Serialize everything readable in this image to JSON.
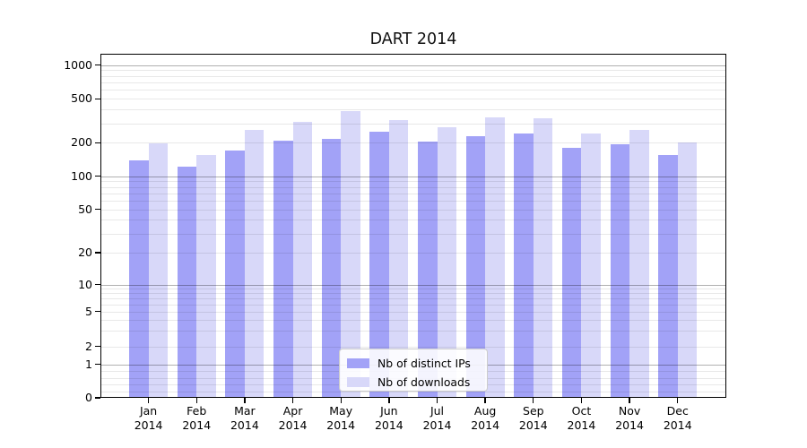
{
  "chart_data": {
    "type": "bar",
    "title": "DART 2014",
    "x": {
      "months": [
        "Jan",
        "Feb",
        "Mar",
        "Apr",
        "May",
        "Jun",
        "Jul",
        "Aug",
        "Sep",
        "Oct",
        "Nov",
        "Dec"
      ],
      "year": "2014"
    },
    "categories": [
      "Jan 2014",
      "Feb 2014",
      "Mar 2014",
      "Apr 2014",
      "May 2014",
      "Jun 2014",
      "Jul 2014",
      "Aug 2014",
      "Sep 2014",
      "Oct 2014",
      "Nov 2014",
      "Dec 2014"
    ],
    "series": [
      {
        "name": "Nb of distinct IPs",
        "color": "#a2a2f7",
        "values": [
          139,
          122,
          171,
          210,
          215,
          253,
          206,
          231,
          241,
          179,
          194,
          156
        ]
      },
      {
        "name": "Nb of downloads",
        "color": "#d8d8f9",
        "values": [
          197,
          154,
          263,
          311,
          389,
          323,
          275,
          340,
          333,
          241,
          261,
          200
        ]
      }
    ],
    "y_axis": {
      "scale": "symlog",
      "ticks": [
        0,
        1,
        2,
        5,
        10,
        20,
        50,
        100,
        200,
        500,
        1000
      ],
      "tick_labels": [
        "0",
        "1",
        "2",
        "5",
        "10",
        "20",
        "50",
        "100",
        "200",
        "500",
        "1000"
      ],
      "ylim": [
        0,
        1300
      ]
    },
    "xlabel": "",
    "ylabel": "",
    "grid": {
      "major_at": [
        1,
        10,
        100,
        1000
      ],
      "major_color": "#b0b0b0",
      "minor_color": "#e9e9e9",
      "grid_on": true
    },
    "legend": {
      "position": "lower center",
      "items": [
        "Nb of distinct IPs",
        "Nb of downloads"
      ]
    }
  }
}
